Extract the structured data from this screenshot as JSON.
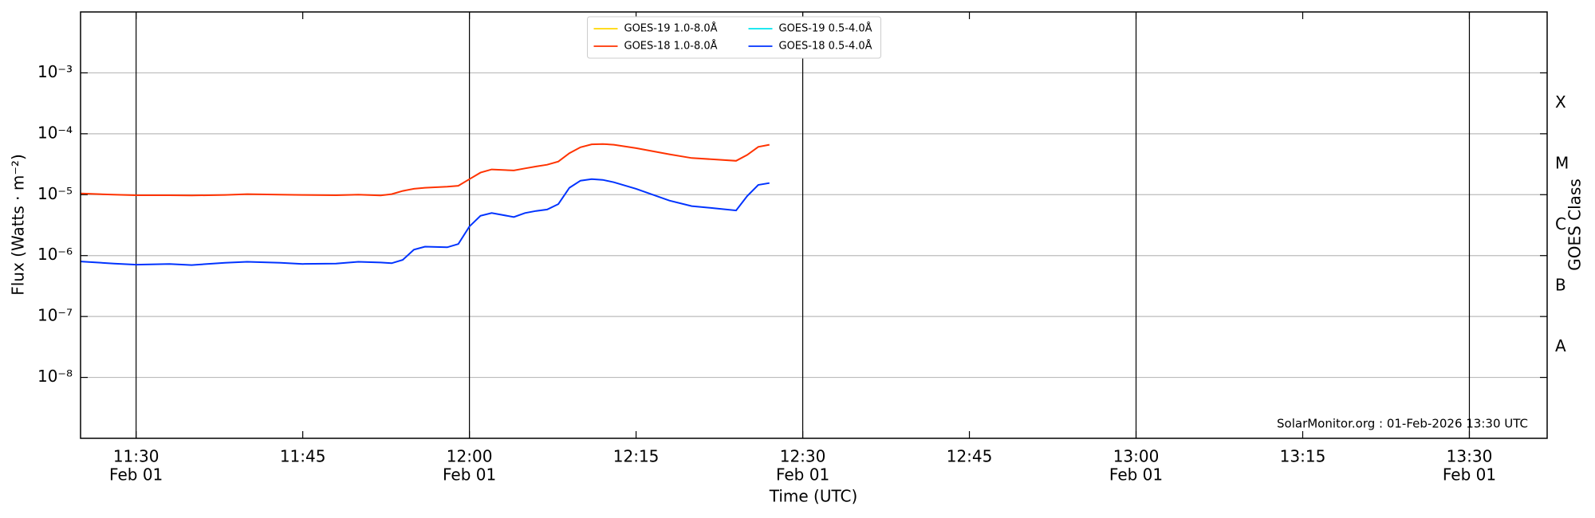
{
  "chart_data": {
    "type": "line",
    "xlabel": "Time (UTC)",
    "ylabel": "Flux (Watts · m⁻²)",
    "y2label": "GOES Class",
    "annotation": "SolarMonitor.org : 01-Feb-2026 13:30 UTC",
    "log_y": true,
    "grid": true,
    "legend_loc": "upper center",
    "xlim": [
      "Feb 01 11:25",
      "Feb 01 13:37"
    ],
    "xticks": [
      {
        "value": "Feb 01 11:30",
        "label": "11:30",
        "date_label": "Feb 01"
      },
      {
        "value": "Feb 01 11:45",
        "label": "11:45"
      },
      {
        "value": "Feb 01 12:00",
        "label": "12:00",
        "date_label": "Feb 01"
      },
      {
        "value": "Feb 01 12:15",
        "label": "12:15"
      },
      {
        "value": "Feb 01 12:30",
        "label": "12:30",
        "date_label": "Feb 01"
      },
      {
        "value": "Feb 01 12:45",
        "label": "12:45"
      },
      {
        "value": "Feb 01 13:00",
        "label": "13:00",
        "date_label": "Feb 01"
      },
      {
        "value": "Feb 01 13:15",
        "label": "13:15"
      },
      {
        "value": "Feb 01 13:30",
        "label": "13:30",
        "date_label": "Feb 01"
      }
    ],
    "ylim": [
      1e-09,
      0.01
    ],
    "yticks": [
      {
        "value": 1e-08,
        "label": "10⁻⁸"
      },
      {
        "value": 1e-07,
        "label": "10⁻⁷"
      },
      {
        "value": 1e-06,
        "label": "10⁻⁶"
      },
      {
        "value": 1e-05,
        "label": "10⁻⁵"
      },
      {
        "value": 0.0001,
        "label": "10⁻⁴"
      },
      {
        "value": 0.001,
        "label": "10⁻³"
      }
    ],
    "classes": [
      {
        "label": "A",
        "value": 1e-08
      },
      {
        "label": "B",
        "value": 1e-07
      },
      {
        "label": "C",
        "value": 1e-06
      },
      {
        "label": "M",
        "value": 1e-05
      },
      {
        "label": "X",
        "value": 0.0001
      }
    ],
    "x": [
      "Feb 01 11:25",
      "Feb 01 11:28",
      "Feb 01 11:30",
      "Feb 01 11:33",
      "Feb 01 11:35",
      "Feb 01 11:38",
      "Feb 01 11:40",
      "Feb 01 11:43",
      "Feb 01 11:45",
      "Feb 01 11:48",
      "Feb 01 11:50",
      "Feb 01 11:52",
      "Feb 01 11:53",
      "Feb 01 11:54",
      "Feb 01 11:55",
      "Feb 01 11:56",
      "Feb 01 11:58",
      "Feb 01 11:59",
      "Feb 01 12:00",
      "Feb 01 12:01",
      "Feb 01 12:02",
      "Feb 01 12:04",
      "Feb 01 12:05",
      "Feb 01 12:06",
      "Feb 01 12:07",
      "Feb 01 12:08",
      "Feb 01 12:09",
      "Feb 01 12:10",
      "Feb 01 12:11",
      "Feb 01 12:12",
      "Feb 01 12:13",
      "Feb 01 12:15",
      "Feb 01 12:18",
      "Feb 01 12:20",
      "Feb 01 12:22",
      "Feb 01 12:24",
      "Feb 01 12:25",
      "Feb 01 12:26",
      "Feb 01 12:27"
    ],
    "series": [
      {
        "name": "GOES-19 1.0-8.0Å",
        "color": "#ffd700",
        "values": [
          null,
          null,
          null,
          null,
          null,
          null,
          null,
          null,
          null,
          null,
          null,
          null,
          null,
          null,
          null,
          null,
          null,
          null,
          null,
          null,
          null,
          null,
          null,
          null,
          null,
          null,
          null,
          null,
          null,
          null,
          null,
          null,
          null,
          null,
          null,
          null,
          null,
          null,
          null
        ]
      },
      {
        "name": "GOES-18 1.0-8.0Å",
        "color": "#ff3300",
        "values": [
          1.05e-05,
          1e-05,
          9.8e-06,
          9.8e-06,
          9.7e-06,
          9.9e-06,
          1.02e-05,
          1e-05,
          9.9e-06,
          9.8e-06,
          1e-05,
          9.7e-06,
          1.02e-05,
          1.15e-05,
          1.25e-05,
          1.3e-05,
          1.35e-05,
          1.4e-05,
          1.8e-05,
          2.3e-05,
          2.6e-05,
          2.5e-05,
          2.7e-05,
          2.9e-05,
          3.1e-05,
          3.5e-05,
          4.8e-05,
          6e-05,
          6.7e-05,
          6.8e-05,
          6.6e-05,
          5.8e-05,
          4.6e-05,
          4e-05,
          3.8e-05,
          3.6e-05,
          4.5e-05,
          6.1e-05,
          6.6e-05
        ]
      },
      {
        "name": "GOES-19 0.5-4.0Å",
        "color": "#00e5ee",
        "values": [
          null,
          null,
          null,
          null,
          null,
          null,
          null,
          null,
          null,
          null,
          null,
          null,
          null,
          null,
          null,
          null,
          null,
          null,
          null,
          null,
          null,
          null,
          null,
          null,
          null,
          null,
          null,
          null,
          null,
          null,
          null,
          null,
          null,
          null,
          null,
          null,
          null,
          null,
          null
        ]
      },
      {
        "name": "GOES-18 0.5-4.0Å",
        "color": "#0033ff",
        "values": [
          8e-07,
          7.4e-07,
          7.1e-07,
          7.3e-07,
          7e-07,
          7.6e-07,
          7.9e-07,
          7.6e-07,
          7.3e-07,
          7.4e-07,
          7.9e-07,
          7.7e-07,
          7.5e-07,
          8.5e-07,
          1.25e-06,
          1.4e-06,
          1.37e-06,
          1.55e-06,
          3e-06,
          4.5e-06,
          5e-06,
          4.3e-06,
          5e-06,
          5.4e-06,
          5.7e-06,
          7e-06,
          1.3e-05,
          1.7e-05,
          1.8e-05,
          1.75e-05,
          1.6e-05,
          1.25e-05,
          8e-06,
          6.5e-06,
          6e-06,
          5.5e-06,
          9.5e-06,
          1.45e-05,
          1.55e-05
        ]
      }
    ]
  }
}
